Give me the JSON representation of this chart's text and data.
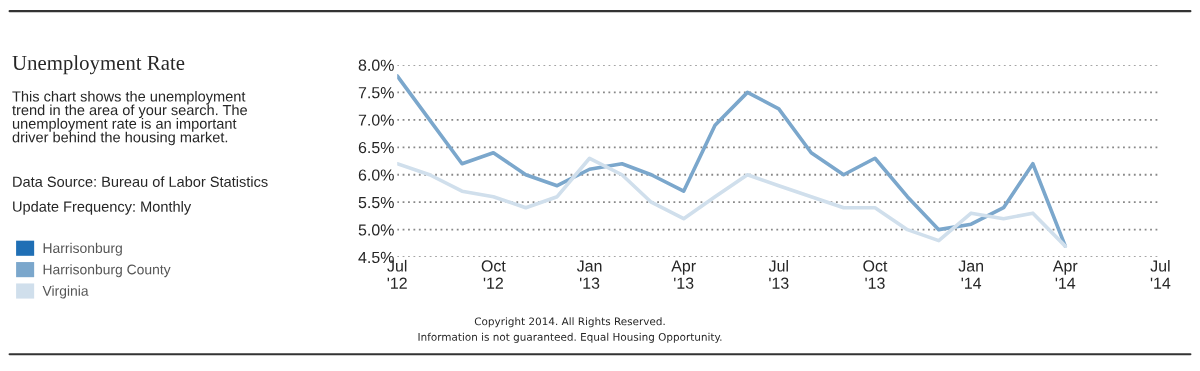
{
  "chart_data": {
    "type": "line",
    "title": "Unemployment Rate",
    "subtitle": "This chart shows the unemployment trend in the area of your search. The unemployment rate is an important driver behind the housing market.",
    "annotations": [
      "Data Source: Bureau of Labor Statistics",
      "Update Frequency: Monthly",
      "Copyright 2014. All Rights Reserved.",
      "Information is not guaranteed. Equal Housing Opportunity."
    ],
    "x": [
      "2012-07",
      "2012-08",
      "2012-09",
      "2012-10",
      "2012-11",
      "2012-12",
      "2013-01",
      "2013-02",
      "2013-03",
      "2013-04",
      "2013-05",
      "2013-06",
      "2013-07",
      "2013-08",
      "2013-09",
      "2013-10",
      "2013-11",
      "2013-12",
      "2014-01",
      "2014-02",
      "2014-03",
      "2014-04"
    ],
    "series": [
      {
        "name": "Harrisonburg",
        "color": "#1f6fb5",
        "values": [
          null,
          null,
          null,
          null,
          null,
          null,
          null,
          null,
          null,
          null,
          null,
          null,
          null,
          null,
          null,
          null,
          null,
          null,
          null,
          null,
          null,
          null
        ]
      },
      {
        "name": "Harrisonburg County",
        "color": "#7ba7cc",
        "values": [
          7.8,
          7.0,
          6.2,
          6.4,
          6.0,
          5.8,
          6.1,
          6.2,
          6.0,
          5.7,
          6.9,
          7.5,
          7.2,
          6.4,
          6.0,
          6.3,
          5.6,
          5.0,
          5.1,
          5.4,
          6.2,
          4.7
        ]
      },
      {
        "name": "Virginia",
        "color": "#d0dfec",
        "values": [
          6.2,
          6.0,
          5.7,
          5.6,
          5.4,
          5.6,
          6.3,
          6.0,
          5.5,
          5.2,
          5.6,
          6.0,
          5.8,
          5.6,
          5.4,
          5.4,
          5.0,
          4.8,
          5.3,
          5.2,
          5.3,
          4.7
        ]
      }
    ],
    "xlim": [
      "2012-07",
      "2014-07"
    ],
    "xticks": [
      {
        "value": "2012-07",
        "label": "Jul\n'12"
      },
      {
        "value": "2012-10",
        "label": "Oct\n'12"
      },
      {
        "value": "2013-01",
        "label": "Jan\n'13"
      },
      {
        "value": "2013-04",
        "label": "Apr\n'13"
      },
      {
        "value": "2013-07",
        "label": "Jul\n'13"
      },
      {
        "value": "2013-10",
        "label": "Oct\n'13"
      },
      {
        "value": "2014-01",
        "label": "Jan\n'14"
      },
      {
        "value": "2014-04",
        "label": "Apr\n'14"
      },
      {
        "value": "2014-07",
        "label": "Jul\n'14"
      }
    ],
    "ylim": [
      4.5,
      8.0
    ],
    "yticks": [
      {
        "value": 4.5,
        "label": "4.5%"
      },
      {
        "value": 5.0,
        "label": "5.0%"
      },
      {
        "value": 5.5,
        "label": "5.5%"
      },
      {
        "value": 6.0,
        "label": "6.0%"
      },
      {
        "value": 6.5,
        "label": "6.5%"
      },
      {
        "value": 7.0,
        "label": "7.0%"
      },
      {
        "value": 7.5,
        "label": "7.5%"
      },
      {
        "value": 8.0,
        "label": "8.0%"
      }
    ],
    "grid": "y",
    "legend": "left",
    "marker": "none",
    "line_style": "solid"
  }
}
